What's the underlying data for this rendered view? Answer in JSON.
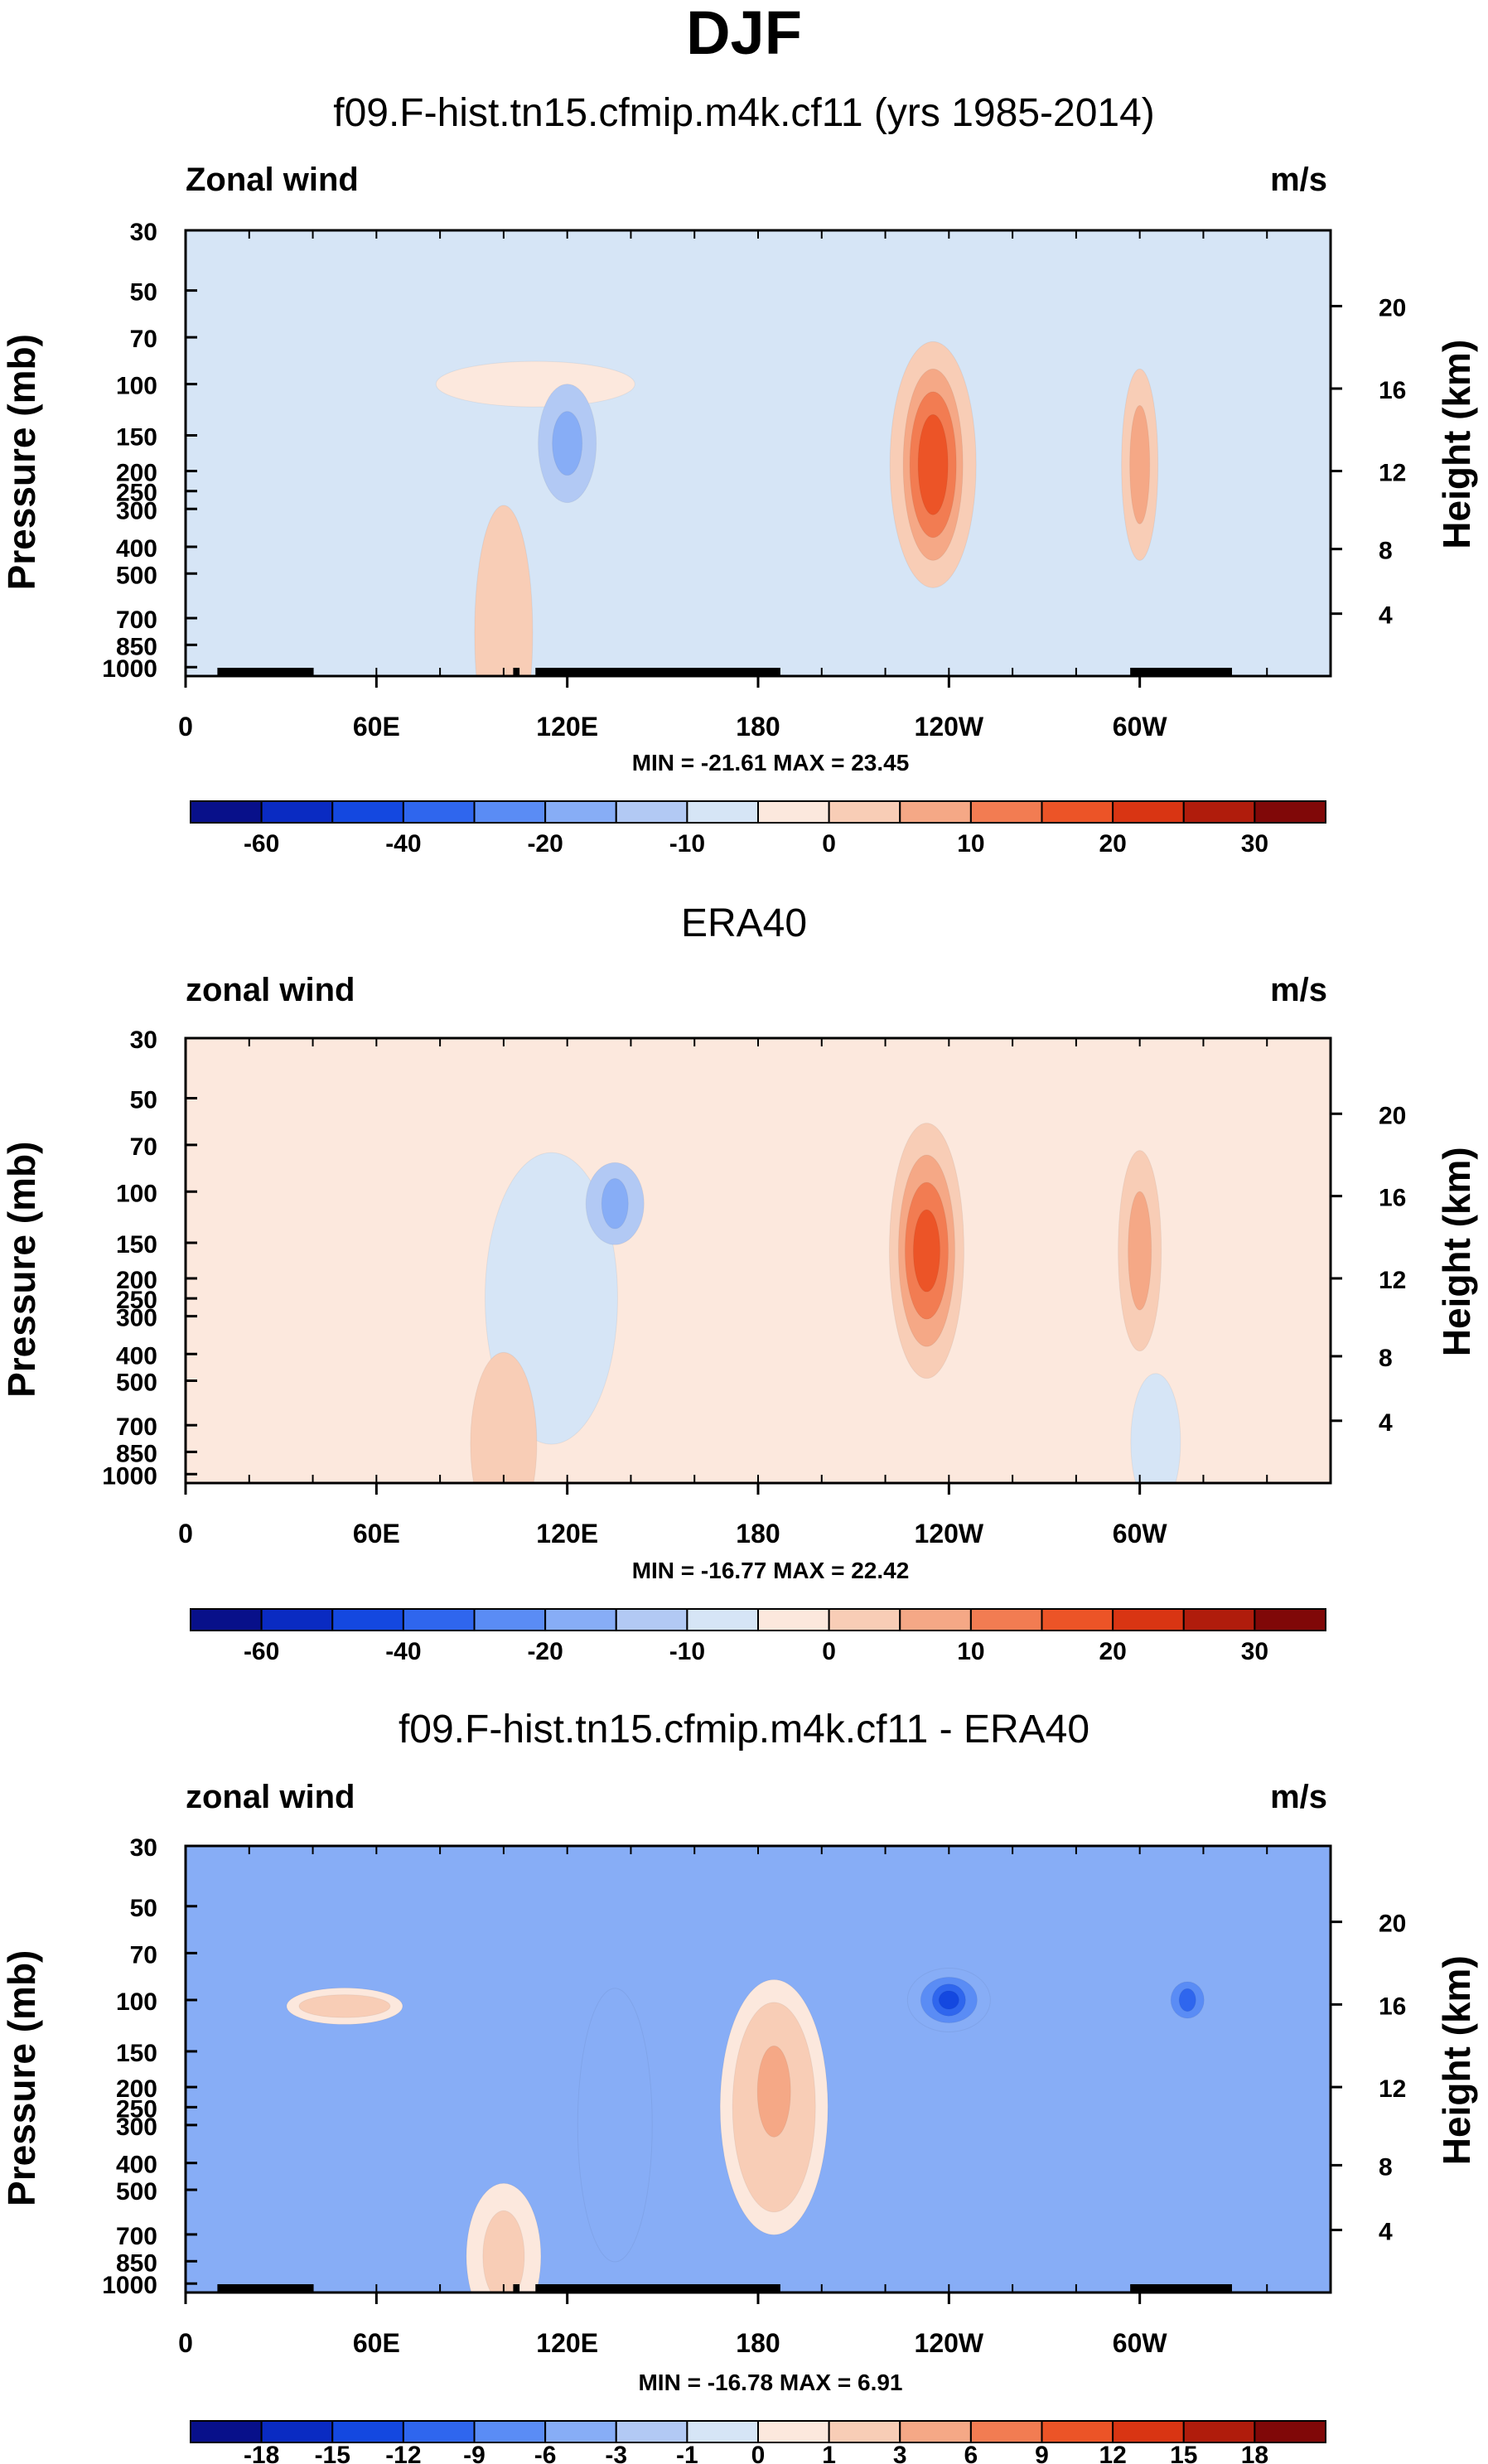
{
  "main_title": "DJF",
  "chart_data": [
    {
      "type": "contour",
      "title": "f09.F-hist.tn15.cfmip.m4k.cf11 (yrs 1985-2014)",
      "left_label": "Zonal wind",
      "right_label": "m/s",
      "ylabel": "Pressure (mb)",
      "y2label": "Height (km)",
      "pressure_ticks": [
        "30",
        "50",
        "70",
        "100",
        "150",
        "200",
        "250",
        "300",
        "400",
        "500",
        "700",
        "850",
        "1000"
      ],
      "height_ticks": [
        "20",
        "16",
        "12",
        "8",
        "4"
      ],
      "x_ticks": [
        "0",
        "60E",
        "120E",
        "180",
        "120W",
        "60W"
      ],
      "stats": "MIN = -21.61  MAX =  23.45",
      "colorbar": {
        "labels": [
          "-60",
          "-40",
          "-20",
          "-10",
          "0",
          "10",
          "20",
          "30"
        ],
        "colors": [
          "#08108a",
          "#0a2bc2",
          "#1448e0",
          "#2f66ee",
          "#5a8cf5",
          "#87adf6",
          "#b2c9f4",
          "#d6e5f6",
          "#fce8dd",
          "#f8cdb6",
          "#f5a886",
          "#f27c52",
          "#ec5427",
          "#d93513",
          "#b01c0c",
          "#800808"
        ]
      },
      "features": [
        {
          "lon": 110,
          "p": 100,
          "value": 0,
          "color": "#fce8dd",
          "rx": 120,
          "ry": 50
        },
        {
          "lon": 235,
          "p": 190,
          "value": 5,
          "color": "#f8cdb6",
          "rx": 52,
          "ry": 270
        },
        {
          "lon": 235,
          "p": 190,
          "value": 10,
          "color": "#f5a886",
          "rx": 36,
          "ry": 210
        },
        {
          "lon": 235,
          "p": 190,
          "value": 15,
          "color": "#f27c52",
          "rx": 28,
          "ry": 160
        },
        {
          "lon": 235,
          "p": 190,
          "value": 20,
          "color": "#ec5427",
          "rx": 18,
          "ry": 110
        },
        {
          "lon": 300,
          "p": 190,
          "value": 5,
          "color": "#f8cdb6",
          "rx": 22,
          "ry": 210
        },
        {
          "lon": 300,
          "p": 190,
          "value": 10,
          "color": "#f5a886",
          "rx": 12,
          "ry": 130
        },
        {
          "lon": 120,
          "p": 160,
          "value": -5,
          "color": "#b2c9f4",
          "rx": 35,
          "ry": 130
        },
        {
          "lon": 120,
          "p": 160,
          "value": -10,
          "color": "#87adf6",
          "rx": 18,
          "ry": 70
        },
        {
          "lon": 100,
          "p": 780,
          "value": 5,
          "color": "#f8cdb6",
          "rx": 35,
          "ry": 280
        }
      ],
      "terrain_segments": [
        [
          "10E",
          "40E"
        ],
        [
          "103E",
          "105E"
        ],
        [
          "110E",
          "173W"
        ],
        [
          "63W",
          "31W"
        ]
      ]
    },
    {
      "type": "contour",
      "title": "ERA40",
      "left_label": "zonal wind",
      "right_label": "m/s",
      "ylabel": "Pressure (mb)",
      "y2label": "Height (km)",
      "pressure_ticks": [
        "30",
        "50",
        "70",
        "100",
        "150",
        "200",
        "250",
        "300",
        "400",
        "500",
        "700",
        "850",
        "1000"
      ],
      "height_ticks": [
        "20",
        "16",
        "12",
        "8",
        "4"
      ],
      "x_ticks": [
        "0",
        "60E",
        "120E",
        "180",
        "120W",
        "60W"
      ],
      "stats": "MIN = -16.77  MAX =  22.42",
      "colorbar": {
        "labels": [
          "-60",
          "-40",
          "-20",
          "-10",
          "0",
          "10",
          "20",
          "30"
        ],
        "colors": [
          "#08108a",
          "#0a2bc2",
          "#1448e0",
          "#2f66ee",
          "#5a8cf5",
          "#87adf6",
          "#b2c9f4",
          "#d6e5f6",
          "#fce8dd",
          "#f8cdb6",
          "#f5a886",
          "#f27c52",
          "#ec5427",
          "#d93513",
          "#b01c0c",
          "#800808"
        ]
      },
      "features": [
        {
          "lon": 115,
          "p": 250,
          "value": -1,
          "color": "#d6e5f6",
          "rx": 80,
          "ry": 320
        },
        {
          "lon": 135,
          "p": 110,
          "value": -5,
          "color": "#b2c9f4",
          "rx": 35,
          "ry": 90
        },
        {
          "lon": 135,
          "p": 110,
          "value": -10,
          "color": "#87adf6",
          "rx": 16,
          "ry": 55
        },
        {
          "lon": 233,
          "p": 160,
          "value": 5,
          "color": "#f8cdb6",
          "rx": 45,
          "ry": 280
        },
        {
          "lon": 233,
          "p": 160,
          "value": 10,
          "color": "#f5a886",
          "rx": 34,
          "ry": 210
        },
        {
          "lon": 233,
          "p": 160,
          "value": 15,
          "color": "#f27c52",
          "rx": 26,
          "ry": 150
        },
        {
          "lon": 233,
          "p": 160,
          "value": 20,
          "color": "#ec5427",
          "rx": 16,
          "ry": 90
        },
        {
          "lon": 300,
          "p": 160,
          "value": 5,
          "color": "#f8cdb6",
          "rx": 26,
          "ry": 220
        },
        {
          "lon": 300,
          "p": 160,
          "value": 10,
          "color": "#f5a886",
          "rx": 14,
          "ry": 130
        },
        {
          "lon": 100,
          "p": 800,
          "value": 5,
          "color": "#f8cdb6",
          "rx": 40,
          "ry": 200
        },
        {
          "lon": 305,
          "p": 790,
          "value": -1,
          "color": "#d6e5f6",
          "rx": 30,
          "ry": 150
        }
      ],
      "terrain_segments": []
    },
    {
      "type": "contour",
      "title": "f09.F-hist.tn15.cfmip.m4k.cf11 - ERA40",
      "left_label": "zonal wind",
      "right_label": "m/s",
      "ylabel": "Pressure (mb)",
      "y2label": "Height (km)",
      "pressure_ticks": [
        "30",
        "50",
        "70",
        "100",
        "150",
        "200",
        "250",
        "300",
        "400",
        "500",
        "700",
        "850",
        "1000"
      ],
      "height_ticks": [
        "20",
        "16",
        "12",
        "8",
        "4"
      ],
      "x_ticks": [
        "0",
        "60E",
        "120E",
        "180",
        "120W",
        "60W"
      ],
      "stats": "MIN = -16.78  MAX =  6.91",
      "colorbar": {
        "labels": [
          "-18",
          "-15",
          "-12",
          "-9",
          "-6",
          "-3",
          "-1",
          "0",
          "1",
          "3",
          "6",
          "9",
          "12",
          "15",
          "18"
        ],
        "colors": [
          "#08108a",
          "#0a2bc2",
          "#1448e0",
          "#2f66ee",
          "#5a8cf5",
          "#87adf6",
          "#b2c9f4",
          "#d6e5f6",
          "#fce8dd",
          "#f8cdb6",
          "#f5a886",
          "#f27c52",
          "#ec5427",
          "#d93513",
          "#b01c0c",
          "#800808"
        ]
      },
      "features": [
        {
          "lon": 50,
          "p": 105,
          "value": 0,
          "color": "#fce8dd",
          "rx": 70,
          "ry": 40
        },
        {
          "lon": 50,
          "p": 105,
          "value": 1,
          "color": "#f8cdb6",
          "rx": 55,
          "ry": 25
        },
        {
          "lon": 185,
          "p": 250,
          "value": 0,
          "color": "#fce8dd",
          "rx": 65,
          "ry": 280
        },
        {
          "lon": 185,
          "p": 250,
          "value": 1,
          "color": "#f8cdb6",
          "rx": 50,
          "ry": 230
        },
        {
          "lon": 185,
          "p": 210,
          "value": 3,
          "color": "#f5a886",
          "rx": 20,
          "ry": 100
        },
        {
          "lon": 135,
          "p": 300,
          "value": -3,
          "color": "#87adf6",
          "rx": 45,
          "ry": 300
        },
        {
          "lon": 240,
          "p": 100,
          "value": -3,
          "color": "#87adf6",
          "rx": 50,
          "ry": 70
        },
        {
          "lon": 240,
          "p": 100,
          "value": -6,
          "color": "#5a8cf5",
          "rx": 34,
          "ry": 50
        },
        {
          "lon": 240,
          "p": 100,
          "value": -9,
          "color": "#2f66ee",
          "rx": 20,
          "ry": 35
        },
        {
          "lon": 240,
          "p": 100,
          "value": -12,
          "color": "#1448e0",
          "rx": 12,
          "ry": 20
        },
        {
          "lon": 315,
          "p": 100,
          "value": -6,
          "color": "#5a8cf5",
          "rx": 20,
          "ry": 40
        },
        {
          "lon": 315,
          "p": 100,
          "value": -9,
          "color": "#2f66ee",
          "rx": 10,
          "ry": 25
        },
        {
          "lon": 100,
          "p": 820,
          "value": 0,
          "color": "#fce8dd",
          "rx": 45,
          "ry": 160
        },
        {
          "lon": 100,
          "p": 820,
          "value": 1,
          "color": "#f8cdb6",
          "rx": 25,
          "ry": 100
        }
      ],
      "terrain_segments": [
        [
          "10E",
          "40E"
        ],
        [
          "103E",
          "105E"
        ],
        [
          "110E",
          "173W"
        ],
        [
          "63W",
          "31W"
        ]
      ]
    }
  ]
}
